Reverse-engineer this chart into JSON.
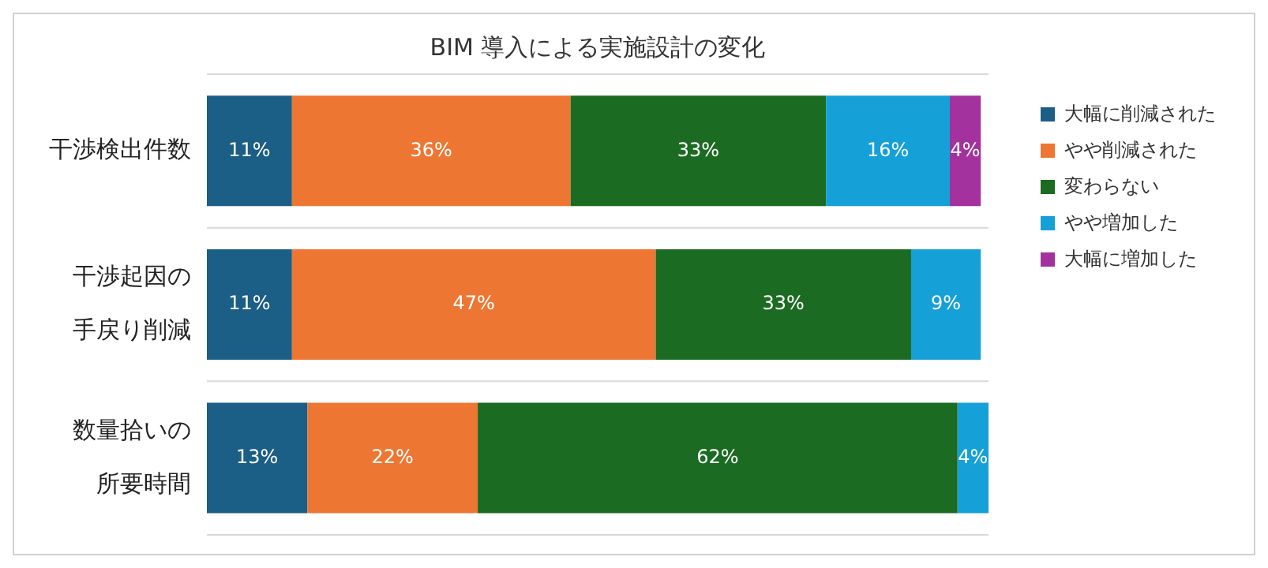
{
  "chart_data": {
    "type": "bar",
    "orientation": "horizontal",
    "stacked": true,
    "title": "BIM 導入による実施設計の変化",
    "categories": [
      "干渉検出件数",
      "干渉起因の手戻り削減",
      "数量拾いの所要時間"
    ],
    "series": [
      {
        "name": "大幅に削減された",
        "color": "#1b5e86",
        "values": [
          11,
          11,
          13
        ],
        "value_labels": [
          "11%",
          "11%",
          "13%"
        ]
      },
      {
        "name": "やや削減された",
        "color": "#ed7633",
        "values": [
          36,
          47,
          22
        ],
        "value_labels": [
          "36%",
          "47%",
          "22%"
        ]
      },
      {
        "name": "変わらない",
        "color": "#1c6b22",
        "values": [
          33,
          33,
          62
        ],
        "value_labels": [
          "33%",
          "33%",
          "62%"
        ]
      },
      {
        "name": "やや増加した",
        "color": "#15a0d8",
        "values": [
          16,
          9,
          4
        ],
        "value_labels": [
          "16%",
          "9%",
          "4%"
        ]
      },
      {
        "name": "大幅に増加した",
        "color": "#a3319e",
        "values": [
          4,
          null,
          null
        ],
        "value_labels": [
          "4%",
          null,
          null
        ]
      }
    ],
    "grid": "y",
    "legend": "right"
  }
}
